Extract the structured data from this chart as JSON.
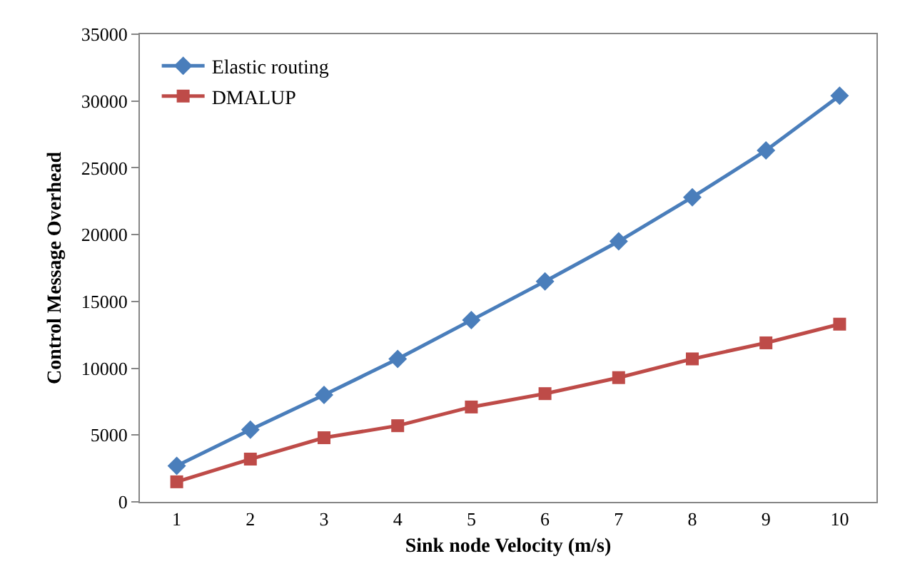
{
  "chart_data": {
    "type": "line",
    "xlabel": "Sink node Velocity (m/s)",
    "ylabel": "Control Message Overhead",
    "categories": [
      "1",
      "2",
      "3",
      "4",
      "5",
      "6",
      "7",
      "8",
      "9",
      "10"
    ],
    "series": [
      {
        "name": "Elastic routing",
        "color": "#4a7ebb",
        "marker": "diamond",
        "values": [
          2700,
          5400,
          8000,
          10700,
          13600,
          16500,
          19500,
          22800,
          26300,
          30400
        ]
      },
      {
        "name": "DMALUP",
        "color": "#be4b48",
        "marker": "square",
        "values": [
          1500,
          3200,
          4800,
          5700,
          7100,
          8100,
          9300,
          10700,
          11900,
          13300
        ]
      }
    ],
    "ylim": [
      0,
      35000
    ],
    "yticks": [
      0,
      5000,
      10000,
      15000,
      20000,
      25000,
      30000,
      35000
    ],
    "legend": "top left",
    "line_style": "solid"
  }
}
